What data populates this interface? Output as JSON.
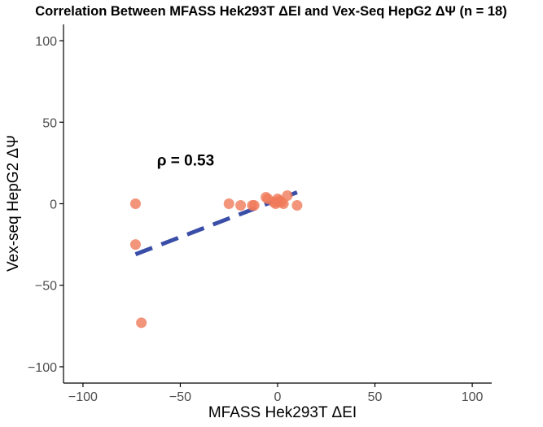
{
  "chart_data": {
    "type": "scatter",
    "title": "Correlation Between MFASS Hek293T ΔEI and Vex-Seq HepG2 ΔΨ (n = 18)",
    "xlabel": "MFASS Hek293T ΔEI",
    "ylabel": "Vex-seq HepG2 ΔΨ",
    "xlim": [
      -110,
      110
    ],
    "ylim": [
      -110,
      110
    ],
    "xticks": [
      -100,
      -50,
      0,
      50,
      100
    ],
    "yticks": [
      -100,
      -50,
      0,
      50,
      100
    ],
    "xtick_labels": [
      "−100",
      "−50",
      "0",
      "50",
      "100"
    ],
    "ytick_labels": [
      "−100",
      "−50",
      "0",
      "50",
      "100"
    ],
    "grid": false,
    "annotation": {
      "text": "ρ = 0.53",
      "x": -62,
      "y": 27
    },
    "points": [
      {
        "x": -73,
        "y": 0
      },
      {
        "x": -73,
        "y": -25
      },
      {
        "x": -70,
        "y": -73
      },
      {
        "x": -25,
        "y": 0
      },
      {
        "x": -19,
        "y": -1
      },
      {
        "x": -13,
        "y": -1
      },
      {
        "x": -12,
        "y": -1
      },
      {
        "x": -6,
        "y": 4
      },
      {
        "x": -5,
        "y": 3
      },
      {
        "x": -2,
        "y": 1
      },
      {
        "x": -1,
        "y": 0
      },
      {
        "x": 0,
        "y": 1
      },
      {
        "x": 0,
        "y": 3
      },
      {
        "x": 1,
        "y": 2
      },
      {
        "x": 2,
        "y": 1
      },
      {
        "x": 3,
        "y": 0
      },
      {
        "x": 5,
        "y": 5
      },
      {
        "x": 10,
        "y": -1
      }
    ],
    "regression_line": {
      "x": [
        -73,
        10
      ],
      "y": [
        -31,
        7
      ]
    },
    "colors": {
      "points": "#f07a5a",
      "regression": "#3a4ea8",
      "axis": "#000000"
    }
  }
}
